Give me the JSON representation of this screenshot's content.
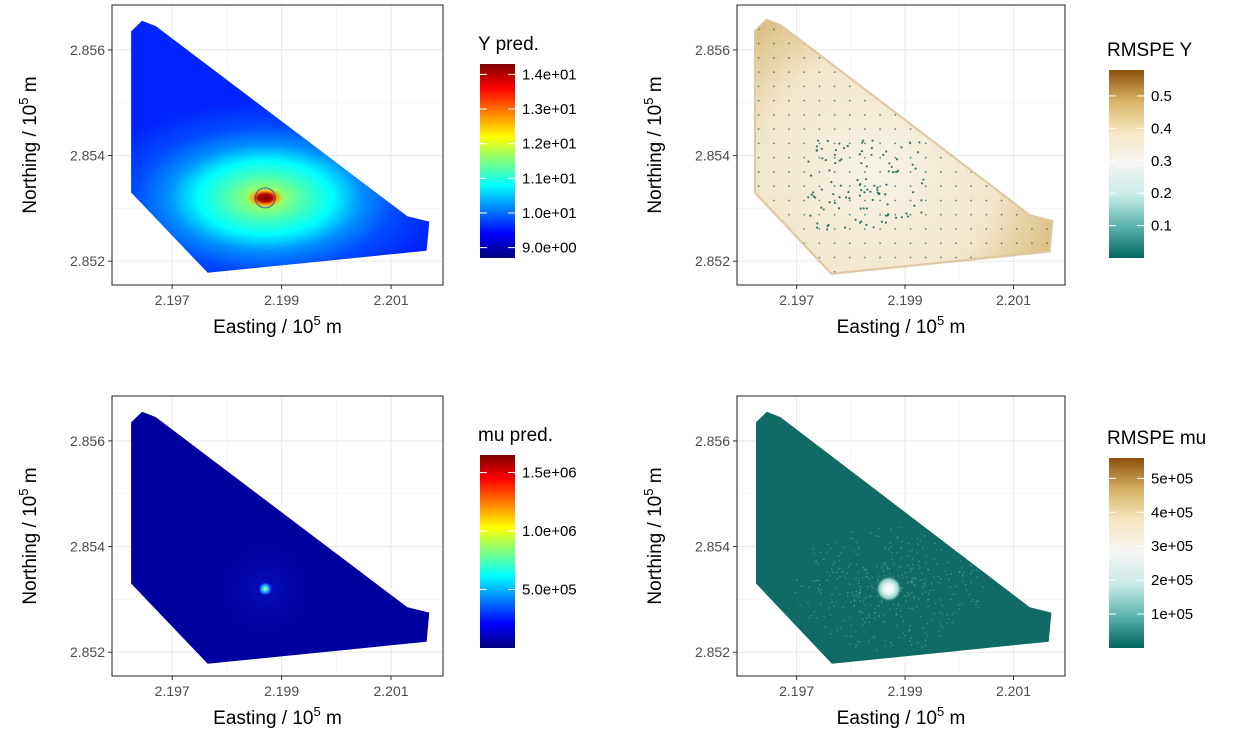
{
  "chart_data": [
    {
      "type": "heatmap",
      "xlabel": "Easting / 10^5 m",
      "ylabel": "Northing / 10^5 m",
      "x_ticks": [
        "2.197",
        "2.199",
        "2.201"
      ],
      "y_ticks": [
        "2.852",
        "2.854",
        "2.856"
      ],
      "legend_title": "Y pred.",
      "legend_labels": [
        "1.4e+01",
        "1.3e+01",
        "1.2e+01",
        "1.1e+01",
        "1.0e+01",
        "9.0e+00"
      ],
      "legend_values": [
        14,
        13,
        12,
        11,
        10,
        9
      ],
      "value_range": [
        8.7,
        14.3
      ],
      "palette": [
        "#00007F",
        "#0000FF",
        "#007FFF",
        "#00FFFF",
        "#7FFF7F",
        "#FFFF00",
        "#FF7F00",
        "#FF0000",
        "#7F0000"
      ],
      "peak": {
        "x": 2.1987,
        "y": 2.8532
      }
    },
    {
      "type": "heatmap",
      "xlabel": "Easting / 10^5 m",
      "ylabel": "Northing / 10^5 m",
      "x_ticks": [
        "2.197",
        "2.199",
        "2.201"
      ],
      "y_ticks": [
        "2.852",
        "2.854",
        "2.856"
      ],
      "legend_title": "RMSPE Y",
      "legend_labels": [
        "0.5",
        "0.4",
        "0.3",
        "0.2",
        "0.1"
      ],
      "legend_values": [
        0.5,
        0.4,
        0.3,
        0.2,
        0.1
      ],
      "value_range": [
        0.0,
        0.58
      ],
      "palette": [
        "#01665E",
        "#5AB4AC",
        "#C7EAE5",
        "#F5F5F5",
        "#F6E8C3",
        "#D8B365",
        "#8C510A"
      ]
    },
    {
      "type": "heatmap",
      "xlabel": "Easting / 10^5 m",
      "ylabel": "Northing / 10^5 m",
      "x_ticks": [
        "2.197",
        "2.199",
        "2.201"
      ],
      "y_ticks": [
        "2.852",
        "2.854",
        "2.856"
      ],
      "legend_title": "mu pred.",
      "legend_labels": [
        "1.5e+06",
        "1.0e+06",
        "5.0e+05"
      ],
      "legend_values": [
        1500000,
        1000000,
        500000
      ],
      "value_range": [
        0,
        1650000
      ],
      "palette": [
        "#00007F",
        "#0000FF",
        "#007FFF",
        "#00FFFF",
        "#7FFF7F",
        "#FFFF00",
        "#FF7F00",
        "#FF0000",
        "#7F0000"
      ],
      "peak": {
        "x": 2.1987,
        "y": 2.8532
      }
    },
    {
      "type": "heatmap",
      "xlabel": "Easting / 10^5 m",
      "ylabel": "Northing / 10^5 m",
      "x_ticks": [
        "2.197",
        "2.199",
        "2.201"
      ],
      "y_ticks": [
        "2.852",
        "2.854",
        "2.856"
      ],
      "legend_title": "RMSPE mu",
      "legend_labels": [
        "5e+05",
        "4e+05",
        "3e+05",
        "2e+05",
        "1e+05"
      ],
      "legend_values": [
        500000,
        400000,
        300000,
        200000,
        100000
      ],
      "value_range": [
        0,
        560000
      ],
      "palette": [
        "#01665E",
        "#5AB4AC",
        "#C7EAE5",
        "#F5F5F5",
        "#F6E8C3",
        "#D8B365",
        "#8C510A"
      ],
      "peak": {
        "x": 2.1987,
        "y": 2.8532
      }
    }
  ]
}
